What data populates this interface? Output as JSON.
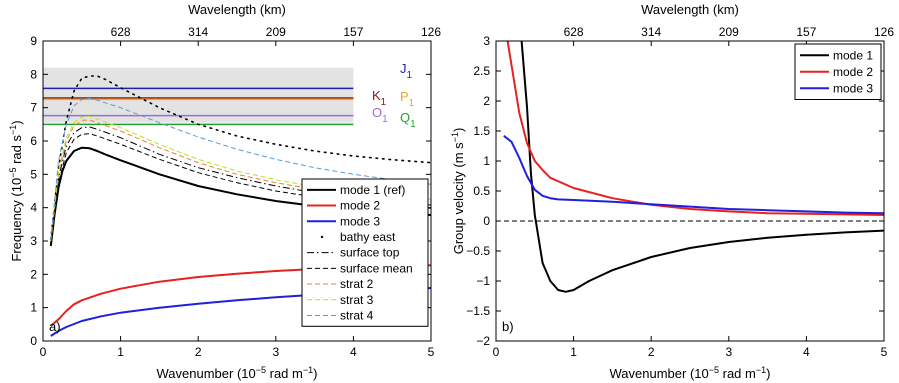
{
  "chart_data": [
    {
      "type": "line",
      "panel_label": "a)",
      "xlabel_parts": {
        "a": "Wavenumber (10",
        "sup": "−5",
        "b": " rad m",
        "sup2": "−1",
        "c": ")"
      },
      "ylabel_parts": {
        "a": "Frequency (10",
        "sup": "−5",
        "b": " rad s",
        "sup2": "−1",
        "c": ")"
      },
      "top_axis_label": "Wavelength (km)",
      "xlim": [
        0,
        5
      ],
      "ylim": [
        0,
        9
      ],
      "x_ticks": [
        "0",
        "1",
        "2",
        "3",
        "4",
        "5"
      ],
      "y_ticks": [
        "0",
        "1",
        "2",
        "3",
        "4",
        "5",
        "6",
        "7",
        "8",
        "9"
      ],
      "top_ticks": [
        {
          "x": 1,
          "label": "628"
        },
        {
          "x": 2,
          "label": "314"
        },
        {
          "x": 3,
          "label": "209"
        },
        {
          "x": 4,
          "label": "157"
        },
        {
          "x": 5,
          "label": "126"
        }
      ],
      "shaded_band": {
        "x": [
          0,
          4
        ],
        "y": [
          6.55,
          8.2
        ],
        "color": "#e3e3e3"
      },
      "tidal_lines": [
        {
          "name": "J",
          "sub": "1",
          "y": 7.58,
          "color": "#1f1fb4"
        },
        {
          "name": "K",
          "sub": "1",
          "y": 7.29,
          "color": "#8c1414"
        },
        {
          "name": "P",
          "sub": "1",
          "y": 7.25,
          "color": "#f5a623"
        },
        {
          "name": "O",
          "sub": "1",
          "y": 6.76,
          "color": "#9b6bd6"
        },
        {
          "name": "Q",
          "sub": "1",
          "y": 6.5,
          "color": "#22a02a"
        }
      ],
      "series": [
        {
          "name": "mode 1 (ref)",
          "color": "#000000",
          "style": "solid",
          "width": 2,
          "points": [
            [
              0.1,
              2.85
            ],
            [
              0.15,
              3.8
            ],
            [
              0.2,
              4.6
            ],
            [
              0.25,
              5.1
            ],
            [
              0.3,
              5.4
            ],
            [
              0.4,
              5.7
            ],
            [
              0.5,
              5.8
            ],
            [
              0.6,
              5.78
            ],
            [
              0.7,
              5.7
            ],
            [
              0.8,
              5.6
            ],
            [
              1.0,
              5.42
            ],
            [
              1.5,
              5.0
            ],
            [
              2.0,
              4.65
            ],
            [
              2.5,
              4.4
            ],
            [
              3.0,
              4.2
            ],
            [
              3.5,
              4.05
            ],
            [
              4.0,
              3.92
            ],
            [
              4.5,
              3.85
            ],
            [
              5.0,
              3.78
            ]
          ]
        },
        {
          "name": "mode 2",
          "color": "#e8201e",
          "style": "solid",
          "width": 2,
          "points": [
            [
              0.1,
              0.45
            ],
            [
              0.2,
              0.65
            ],
            [
              0.3,
              0.9
            ],
            [
              0.4,
              1.1
            ],
            [
              0.5,
              1.22
            ],
            [
              0.75,
              1.42
            ],
            [
              1.0,
              1.57
            ],
            [
              1.5,
              1.78
            ],
            [
              2.0,
              1.92
            ],
            [
              2.5,
              2.02
            ],
            [
              3.0,
              2.1
            ],
            [
              3.5,
              2.16
            ],
            [
              4.0,
              2.2
            ],
            [
              4.5,
              2.24
            ],
            [
              5.0,
              2.27
            ]
          ]
        },
        {
          "name": "mode 3",
          "color": "#1f1fe0",
          "style": "solid",
          "width": 2,
          "points": [
            [
              0.1,
              0.15
            ],
            [
              0.2,
              0.3
            ],
            [
              0.3,
              0.42
            ],
            [
              0.5,
              0.6
            ],
            [
              0.75,
              0.74
            ],
            [
              1.0,
              0.85
            ],
            [
              1.5,
              1.0
            ],
            [
              2.0,
              1.12
            ],
            [
              2.5,
              1.22
            ],
            [
              3.0,
              1.31
            ],
            [
              3.5,
              1.39
            ],
            [
              4.0,
              1.46
            ],
            [
              4.5,
              1.53
            ],
            [
              5.0,
              1.59
            ]
          ]
        },
        {
          "name": "bathy east",
          "color": "#000000",
          "style": "dotted",
          "width": 1.6,
          "points": [
            [
              0.1,
              3.05
            ],
            [
              0.2,
              5.2
            ],
            [
              0.3,
              6.6
            ],
            [
              0.4,
              7.5
            ],
            [
              0.5,
              7.88
            ],
            [
              0.6,
              7.95
            ],
            [
              0.7,
              7.95
            ],
            [
              0.8,
              7.85
            ],
            [
              1.0,
              7.6
            ],
            [
              1.5,
              7.0
            ],
            [
              2.0,
              6.5
            ],
            [
              2.5,
              6.15
            ],
            [
              3.0,
              5.9
            ],
            [
              3.5,
              5.7
            ],
            [
              4.0,
              5.55
            ],
            [
              4.5,
              5.44
            ],
            [
              5.0,
              5.35
            ]
          ]
        },
        {
          "name": "surface top",
          "color": "#000000",
          "style": "dashdot",
          "width": 1,
          "points": [
            [
              0.1,
              2.95
            ],
            [
              0.2,
              4.9
            ],
            [
              0.3,
              5.85
            ],
            [
              0.4,
              6.25
            ],
            [
              0.5,
              6.4
            ],
            [
              0.6,
              6.42
            ],
            [
              0.7,
              6.35
            ],
            [
              1.0,
              6.1
            ],
            [
              1.5,
              5.6
            ],
            [
              2.0,
              5.2
            ],
            [
              2.5,
              4.9
            ],
            [
              3.0,
              4.65
            ],
            [
              3.5,
              4.45
            ],
            [
              4.0,
              4.3
            ],
            [
              4.5,
              4.18
            ],
            [
              5.0,
              4.08
            ]
          ]
        },
        {
          "name": "surface mean",
          "color": "#000000",
          "style": "dashed",
          "width": 1,
          "points": [
            [
              0.1,
              2.9
            ],
            [
              0.2,
              4.75
            ],
            [
              0.3,
              5.65
            ],
            [
              0.4,
              6.05
            ],
            [
              0.5,
              6.2
            ],
            [
              0.6,
              6.22
            ],
            [
              0.7,
              6.15
            ],
            [
              1.0,
              5.9
            ],
            [
              1.5,
              5.45
            ],
            [
              2.0,
              5.05
            ],
            [
              2.5,
              4.75
            ],
            [
              3.0,
              4.5
            ],
            [
              3.5,
              4.32
            ],
            [
              4.0,
              4.18
            ],
            [
              4.5,
              4.08
            ],
            [
              5.0,
              3.98
            ]
          ]
        },
        {
          "name": "strat 2",
          "color": "#ef7f3a",
          "style": "dashed",
          "width": 1,
          "points": [
            [
              0.1,
              3.0
            ],
            [
              0.2,
              5.0
            ],
            [
              0.3,
              6.0
            ],
            [
              0.4,
              6.45
            ],
            [
              0.5,
              6.62
            ],
            [
              0.6,
              6.63
            ],
            [
              0.7,
              6.55
            ],
            [
              1.0,
              6.3
            ],
            [
              1.5,
              5.8
            ],
            [
              2.0,
              5.35
            ],
            [
              2.5,
              5.0
            ],
            [
              3.0,
              4.75
            ],
            [
              3.5,
              4.55
            ],
            [
              4.0,
              4.4
            ],
            [
              4.5,
              4.28
            ],
            [
              5.0,
              4.18
            ]
          ]
        },
        {
          "name": "strat 3",
          "color": "#b5e61d",
          "style": "dashed",
          "width": 1,
          "points": [
            [
              0.1,
              3.02
            ],
            [
              0.2,
              5.1
            ],
            [
              0.3,
              6.1
            ],
            [
              0.4,
              6.55
            ],
            [
              0.5,
              6.72
            ],
            [
              0.6,
              6.74
            ],
            [
              0.7,
              6.66
            ],
            [
              1.0,
              6.4
            ],
            [
              1.5,
              5.9
            ],
            [
              2.0,
              5.45
            ],
            [
              2.5,
              5.1
            ],
            [
              3.0,
              4.84
            ],
            [
              3.5,
              4.63
            ],
            [
              4.0,
              4.47
            ],
            [
              4.5,
              4.35
            ],
            [
              5.0,
              4.25
            ]
          ]
        },
        {
          "name": "strat 4",
          "color": "#5b9bd5",
          "style": "dashed",
          "width": 1,
          "points": [
            [
              0.1,
              3.05
            ],
            [
              0.2,
              5.4
            ],
            [
              0.3,
              6.5
            ],
            [
              0.4,
              7.05
            ],
            [
              0.5,
              7.25
            ],
            [
              0.6,
              7.28
            ],
            [
              0.7,
              7.22
            ],
            [
              1.0,
              7.0
            ],
            [
              1.5,
              6.55
            ],
            [
              2.0,
              6.12
            ],
            [
              2.5,
              5.75
            ],
            [
              3.0,
              5.45
            ],
            [
              3.5,
              5.2
            ],
            [
              4.0,
              5.0
            ],
            [
              4.5,
              4.84
            ],
            [
              5.0,
              4.7
            ]
          ]
        }
      ],
      "legend": {
        "placement": "bottom-right",
        "entries": [
          "mode 1 (ref)",
          "mode 2",
          "mode 3",
          "bathy east",
          "surface top",
          "surface mean",
          "strat 2",
          "strat 3",
          "strat 4"
        ]
      }
    },
    {
      "type": "line",
      "panel_label": "b)",
      "xlabel_parts": {
        "a": "Wavenumber (10",
        "sup": "−5",
        "b": " rad m",
        "sup2": "−1",
        "c": ")"
      },
      "ylabel_parts": {
        "a": "Group velocity (m s",
        "sup": "−1",
        "b": ")",
        "sup2": "",
        "c": ""
      },
      "top_axis_label": "Wavelength (km)",
      "xlim": [
        0,
        5
      ],
      "ylim": [
        -2,
        3
      ],
      "x_ticks": [
        "0",
        "1",
        "2",
        "3",
        "4",
        "5"
      ],
      "y_ticks": [
        "−2",
        "−1.5",
        "−1",
        "−0.5",
        "0",
        "0.5",
        "1",
        "1.5",
        "2",
        "2.5",
        "3"
      ],
      "top_ticks": [
        {
          "x": 1,
          "label": "628"
        },
        {
          "x": 2,
          "label": "314"
        },
        {
          "x": 3,
          "label": "209"
        },
        {
          "x": 4,
          "label": "157"
        },
        {
          "x": 5,
          "label": "126"
        }
      ],
      "zero_line": {
        "y": 0,
        "style": "dashed"
      },
      "series": [
        {
          "name": "mode 1",
          "color": "#000000",
          "style": "solid",
          "width": 2,
          "points": [
            [
              0.33,
              3.0
            ],
            [
              0.4,
              1.9
            ],
            [
              0.45,
              0.8
            ],
            [
              0.5,
              0.1
            ],
            [
              0.55,
              -0.3
            ],
            [
              0.6,
              -0.7
            ],
            [
              0.7,
              -1.0
            ],
            [
              0.8,
              -1.15
            ],
            [
              0.9,
              -1.18
            ],
            [
              1.0,
              -1.15
            ],
            [
              1.2,
              -1.0
            ],
            [
              1.5,
              -0.82
            ],
            [
              2.0,
              -0.6
            ],
            [
              2.5,
              -0.45
            ],
            [
              3.0,
              -0.35
            ],
            [
              3.5,
              -0.28
            ],
            [
              4.0,
              -0.23
            ],
            [
              4.5,
              -0.19
            ],
            [
              5.0,
              -0.16
            ]
          ]
        },
        {
          "name": "mode 2",
          "color": "#e8201e",
          "style": "solid",
          "width": 2,
          "points": [
            [
              0.15,
              3.0
            ],
            [
              0.2,
              2.6
            ],
            [
              0.25,
              2.2
            ],
            [
              0.3,
              1.8
            ],
            [
              0.4,
              1.3
            ],
            [
              0.5,
              1.0
            ],
            [
              0.6,
              0.85
            ],
            [
              0.7,
              0.72
            ],
            [
              1.0,
              0.55
            ],
            [
              1.5,
              0.38
            ],
            [
              2.0,
              0.27
            ],
            [
              2.5,
              0.2
            ],
            [
              3.0,
              0.16
            ],
            [
              3.5,
              0.13
            ],
            [
              4.0,
              0.12
            ],
            [
              4.5,
              0.11
            ],
            [
              5.0,
              0.1
            ]
          ]
        },
        {
          "name": "mode 3",
          "color": "#1f1fe0",
          "style": "solid",
          "width": 2,
          "points": [
            [
              0.1,
              1.42
            ],
            [
              0.2,
              1.32
            ],
            [
              0.3,
              1.05
            ],
            [
              0.4,
              0.75
            ],
            [
              0.5,
              0.52
            ],
            [
              0.6,
              0.42
            ],
            [
              0.7,
              0.38
            ],
            [
              0.8,
              0.36
            ],
            [
              1.0,
              0.35
            ],
            [
              1.5,
              0.32
            ],
            [
              2.0,
              0.28
            ],
            [
              2.5,
              0.24
            ],
            [
              3.0,
              0.2
            ],
            [
              3.5,
              0.18
            ],
            [
              4.0,
              0.16
            ],
            [
              4.5,
              0.14
            ],
            [
              5.0,
              0.13
            ]
          ]
        }
      ],
      "legend": {
        "placement": "top-right",
        "entries": [
          "mode 1",
          "mode 2",
          "mode 3"
        ]
      }
    }
  ]
}
